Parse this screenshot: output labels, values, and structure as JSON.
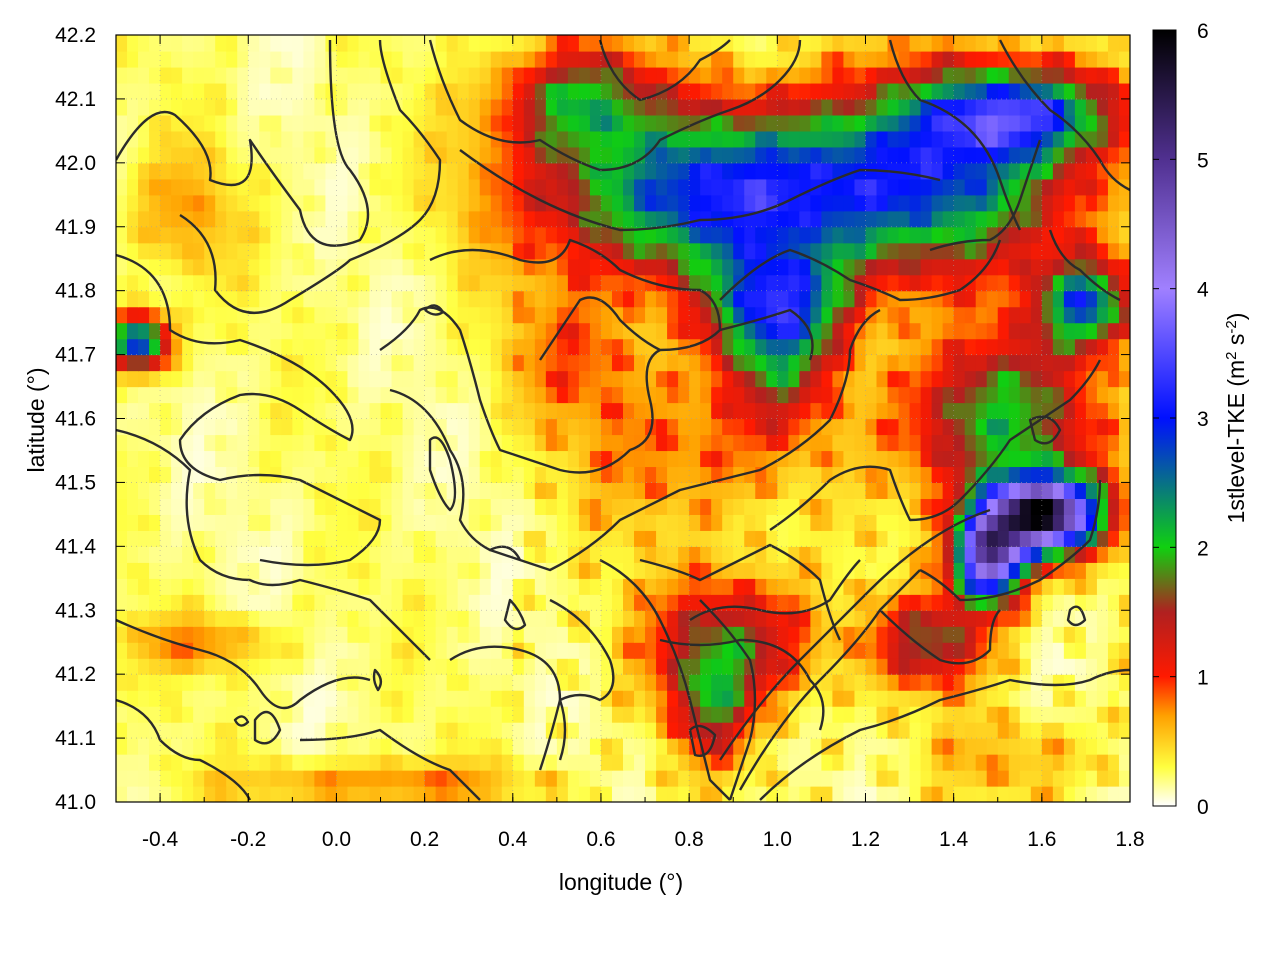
{
  "chart_data": {
    "type": "heatmap",
    "xlabel": "longitude (°)",
    "ylabel": "latitude (°)",
    "colorbar_label": "1stlevel-TKE (m² s⁻²)",
    "colorbar_label_parts": {
      "main": "1stlevel-TKE (m",
      "sup1": "2",
      "mid": " s",
      "sup2": "-2",
      "end": ")"
    },
    "xlim": [
      -0.5,
      1.8
    ],
    "ylim": [
      41.0,
      42.2
    ],
    "clim": [
      0,
      6
    ],
    "x_ticks": [
      -0.4,
      -0.2,
      0.0,
      0.2,
      0.4,
      0.6,
      0.8,
      1.0,
      1.2,
      1.4,
      1.6,
      1.8
    ],
    "x_tick_labels": [
      "-0.4",
      "-0.2",
      "0.0",
      "0.2",
      "0.4",
      "0.6",
      "0.8",
      "1.0",
      "1.2",
      "1.4",
      "1.6",
      "1.8"
    ],
    "y_ticks": [
      41.0,
      41.1,
      41.2,
      41.3,
      41.4,
      41.5,
      41.6,
      41.7,
      41.8,
      41.9,
      42.0,
      42.1,
      42.2
    ],
    "y_tick_labels": [
      "41.0",
      "41.1",
      "41.2",
      "41.3",
      "41.4",
      "41.5",
      "41.6",
      "41.7",
      "41.8",
      "41.9",
      "42.0",
      "42.1",
      "42.2"
    ],
    "c_ticks": [
      0,
      1,
      2,
      3,
      4,
      5,
      6
    ],
    "c_tick_labels": [
      "0",
      "1",
      "2",
      "3",
      "4",
      "5",
      "6"
    ],
    "grid": true,
    "colormap": [
      {
        "v": 0.0,
        "color": "#ffffff"
      },
      {
        "v": 0.3,
        "color": "#ffff40"
      },
      {
        "v": 0.7,
        "color": "#ffa000"
      },
      {
        "v": 1.0,
        "color": "#ff1a00"
      },
      {
        "v": 1.5,
        "color": "#b02020"
      },
      {
        "v": 2.0,
        "color": "#10d010"
      },
      {
        "v": 3.0,
        "color": "#0010ff"
      },
      {
        "v": 4.0,
        "color": "#a080ff"
      },
      {
        "v": 5.0,
        "color": "#503090"
      },
      {
        "v": 6.0,
        "color": "#000000"
      }
    ],
    "tke_blobs": [
      {
        "x": 0.85,
        "y": 41.95,
        "rx": 0.45,
        "ry": 0.15,
        "v": 2.6
      },
      {
        "x": 1.35,
        "y": 41.98,
        "rx": 0.4,
        "ry": 0.17,
        "v": 2.2
      },
      {
        "x": 1.55,
        "y": 42.08,
        "rx": 0.25,
        "ry": 0.08,
        "v": 2.4
      },
      {
        "x": 0.55,
        "y": 42.1,
        "rx": 0.2,
        "ry": 0.1,
        "v": 1.6
      },
      {
        "x": 1.0,
        "y": 41.78,
        "rx": 0.18,
        "ry": 0.1,
        "v": 2.2
      },
      {
        "x": 1.0,
        "y": 41.68,
        "rx": 0.15,
        "ry": 0.12,
        "v": 1.1
      },
      {
        "x": 1.6,
        "y": 41.45,
        "rx": 0.15,
        "ry": 0.07,
        "v": 5.4
      },
      {
        "x": 1.48,
        "y": 41.38,
        "rx": 0.09,
        "ry": 0.08,
        "v": 4.3
      },
      {
        "x": 1.5,
        "y": 41.6,
        "rx": 0.25,
        "ry": 0.15,
        "v": 1.8
      },
      {
        "x": 1.7,
        "y": 41.78,
        "rx": 0.12,
        "ry": 0.08,
        "v": 2.4
      },
      {
        "x": 0.9,
        "y": 41.25,
        "rx": 0.22,
        "ry": 0.12,
        "v": 1.4
      },
      {
        "x": 1.35,
        "y": 41.25,
        "rx": 0.15,
        "ry": 0.08,
        "v": 1.4
      },
      {
        "x": 0.85,
        "y": 41.15,
        "rx": 0.1,
        "ry": 0.1,
        "v": 1.2
      },
      {
        "x": -0.45,
        "y": 41.72,
        "rx": 0.08,
        "ry": 0.05,
        "v": 2.8
      },
      {
        "x": 0.8,
        "y": 41.55,
        "rx": 0.3,
        "ry": 0.15,
        "v": 0.6
      },
      {
        "x": 0.55,
        "y": 41.7,
        "rx": 0.2,
        "ry": 0.12,
        "v": 0.55
      },
      {
        "x": 1.55,
        "y": 41.07,
        "rx": 0.25,
        "ry": 0.08,
        "v": 0.35
      },
      {
        "x": -0.3,
        "y": 41.25,
        "rx": 0.2,
        "ry": 0.05,
        "v": 0.55
      },
      {
        "x": -0.35,
        "y": 41.92,
        "rx": 0.15,
        "ry": 0.12,
        "v": 0.45
      },
      {
        "x": 0.1,
        "y": 41.03,
        "rx": 0.4,
        "ry": 0.04,
        "v": 0.6
      }
    ]
  }
}
